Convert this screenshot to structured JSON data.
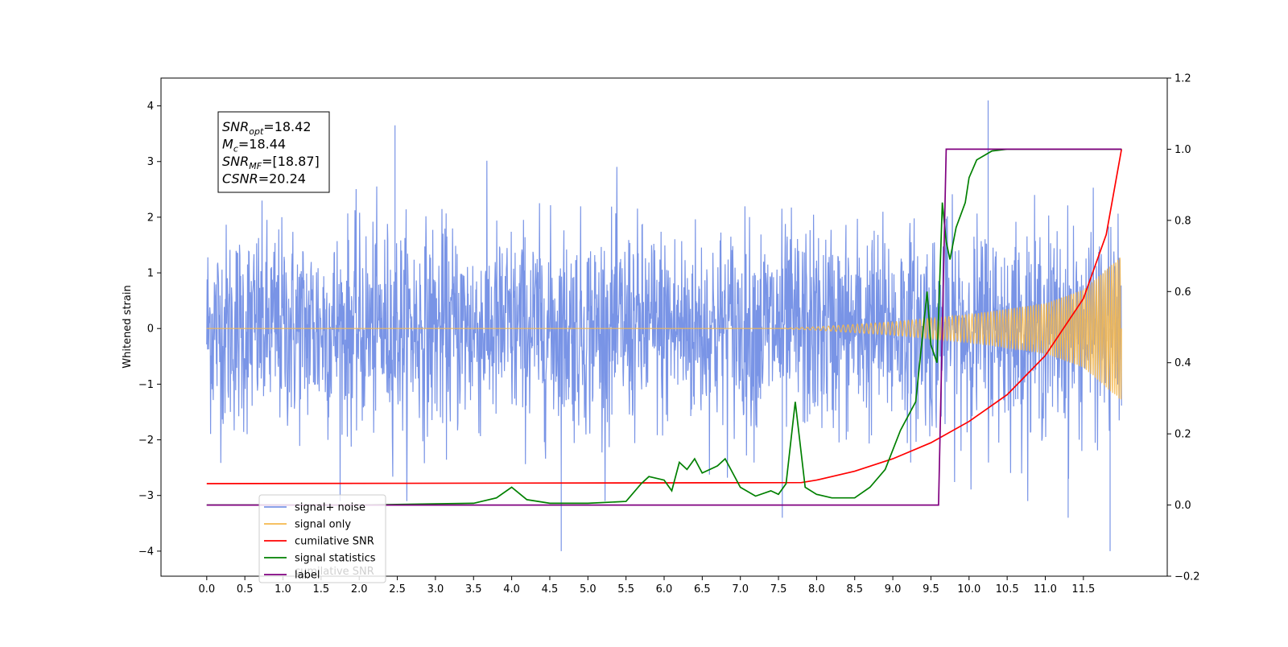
{
  "chart_data": {
    "type": "line",
    "title": "",
    "xlabel": "",
    "ylabel": "Whitened strain",
    "xlim": [
      -0.6,
      12.6
    ],
    "ylim": [
      -4.45,
      4.5
    ],
    "y2lim": [
      -0.2,
      1.2
    ],
    "grid": false,
    "legend_position": "lower-left",
    "x_ticks": [
      0.0,
      0.5,
      1.0,
      1.5,
      2.0,
      2.5,
      3.0,
      3.5,
      4.0,
      4.5,
      5.0,
      5.5,
      6.0,
      6.5,
      7.0,
      7.5,
      8.0,
      8.5,
      9.0,
      9.5,
      10.0,
      10.5,
      11.0,
      11.5
    ],
    "x_tick_labels": [
      "0.0",
      "0.5",
      "1.0",
      "1.5",
      "2.0",
      "2.5",
      "3.0",
      "3.5",
      "4.0",
      "4.5",
      "5.0",
      "5.5",
      "6.0",
      "6.5",
      "7.0",
      "7.5",
      "8.0",
      "8.5",
      "9.0",
      "9.5",
      "10.0",
      "10.5",
      "11.0",
      "11.5"
    ],
    "y_ticks": [
      -4,
      -3,
      -2,
      -1,
      0,
      1,
      2,
      3,
      4
    ],
    "y_tick_labels": [
      "−4",
      "−3",
      "−2",
      "−1",
      "0",
      "1",
      "2",
      "3",
      "4"
    ],
    "y2_ticks": [
      -0.2,
      0.0,
      0.2,
      0.4,
      0.6,
      0.8,
      1.0,
      1.2
    ],
    "y2_tick_labels": [
      "−0.2",
      "0.0",
      "0.2",
      "0.4",
      "0.6",
      "0.8",
      "1.0",
      "1.2"
    ],
    "annotation": {
      "lines": [
        {
          "base": "SNR",
          "sub": "opt",
          "rest": "=18.42"
        },
        {
          "base": "M",
          "sub": "c",
          "rest": "=18.44"
        },
        {
          "base": "SNR",
          "sub": "MF",
          "rest": "=[18.87]"
        },
        {
          "base": "CSNR",
          "sub": "",
          "rest": "=20.24"
        }
      ]
    },
    "series": [
      {
        "name": "signal+ noise",
        "axis": "left",
        "color": "#7994e6",
        "description": "whitened noise, roughly Gaussian, sigma ~0.9",
        "x_range": [
          0,
          12
        ],
        "peaks": [
          [
            2.47,
            3.65
          ],
          [
            10.25,
            4.1
          ],
          [
            4.65,
            -4.0
          ],
          [
            11.85,
            -4.0
          ],
          [
            11.3,
            -3.4
          ],
          [
            7.55,
            -3.4
          ]
        ]
      },
      {
        "name": "signal only",
        "axis": "left",
        "color": "#f5b84d",
        "x": [
          0.0,
          7.5,
          8.0,
          9.0,
          10.0,
          11.0,
          11.5,
          12.0
        ],
        "envelope": [
          0.0,
          0.0,
          0.03,
          0.12,
          0.25,
          0.45,
          0.7,
          1.3
        ]
      },
      {
        "name": "cumilative SNR",
        "axis": "right",
        "color": "#ff0000",
        "x": [
          0.0,
          7.8,
          8.0,
          8.5,
          9.0,
          9.5,
          10.0,
          10.5,
          11.0,
          11.5,
          11.8,
          12.0
        ],
        "y": [
          0.06,
          0.063,
          0.07,
          0.095,
          0.13,
          0.175,
          0.235,
          0.31,
          0.42,
          0.58,
          0.76,
          1.0
        ]
      },
      {
        "name": "signal statistics",
        "axis": "right",
        "color": "#008000",
        "x": [
          0.0,
          2.0,
          3.5,
          3.8,
          4.0,
          4.2,
          4.5,
          5.0,
          5.5,
          5.7,
          5.8,
          6.0,
          6.1,
          6.2,
          6.3,
          6.4,
          6.5,
          6.7,
          6.8,
          7.0,
          7.2,
          7.4,
          7.5,
          7.6,
          7.72,
          7.85,
          8.0,
          8.2,
          8.5,
          8.7,
          8.9,
          9.1,
          9.3,
          9.45,
          9.5,
          9.58,
          9.65,
          9.7,
          9.75,
          9.83,
          9.95,
          10.0,
          10.1,
          10.3,
          10.5,
          11.0,
          12.0
        ],
        "y": [
          0.0,
          0.0,
          0.005,
          0.02,
          0.05,
          0.015,
          0.005,
          0.005,
          0.01,
          0.06,
          0.08,
          0.07,
          0.04,
          0.12,
          0.1,
          0.13,
          0.09,
          0.11,
          0.13,
          0.05,
          0.025,
          0.04,
          0.03,
          0.06,
          0.29,
          0.05,
          0.03,
          0.02,
          0.02,
          0.05,
          0.1,
          0.21,
          0.29,
          0.6,
          0.45,
          0.4,
          0.85,
          0.74,
          0.69,
          0.78,
          0.85,
          0.92,
          0.97,
          0.995,
          1.0,
          1.0,
          1.0
        ]
      },
      {
        "name": "label",
        "axis": "right",
        "color": "#800080",
        "x": [
          0.0,
          9.6,
          9.7,
          12.0
        ],
        "y": [
          0.0,
          0.0,
          1.0,
          1.0
        ]
      }
    ],
    "legend_ghost_text": "cumilative SNR"
  }
}
